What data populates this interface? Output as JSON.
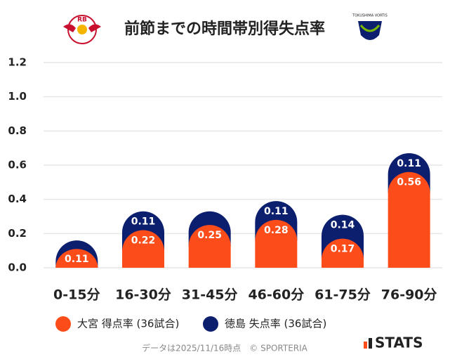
{
  "chart_data": {
    "type": "stacked_bar",
    "title": "前節までの時間帯別得失点率",
    "categories": [
      "0-15分",
      "16-30分",
      "31-45分",
      "46-60分",
      "61-75分",
      "76-90分"
    ],
    "series": [
      {
        "name": "大宮 得点率 (36試合)",
        "color": "#fc4c1a",
        "values": [
          0.11,
          0.22,
          0.25,
          0.28,
          0.17,
          0.56
        ]
      },
      {
        "name": "徳島 失点率 (36試合)",
        "color": "#0c1e6e",
        "values": [
          0.05,
          0.11,
          0.08,
          0.11,
          0.14,
          0.11
        ]
      }
    ],
    "ylim": [
      0,
      1.2
    ],
    "yticks": [
      {
        "value": 0,
        "label": "0.0"
      },
      0.2,
      0.4,
      0.6,
      0.8,
      {
        "value": 1,
        "label": "1.0"
      },
      1.2
    ],
    "grid": true,
    "logos": {
      "left": "RB",
      "right": "TOKUSHIMA VORTIS"
    },
    "footnote": "データは2025/11/16時点　© SPORTERIA",
    "brand": "STATS"
  }
}
